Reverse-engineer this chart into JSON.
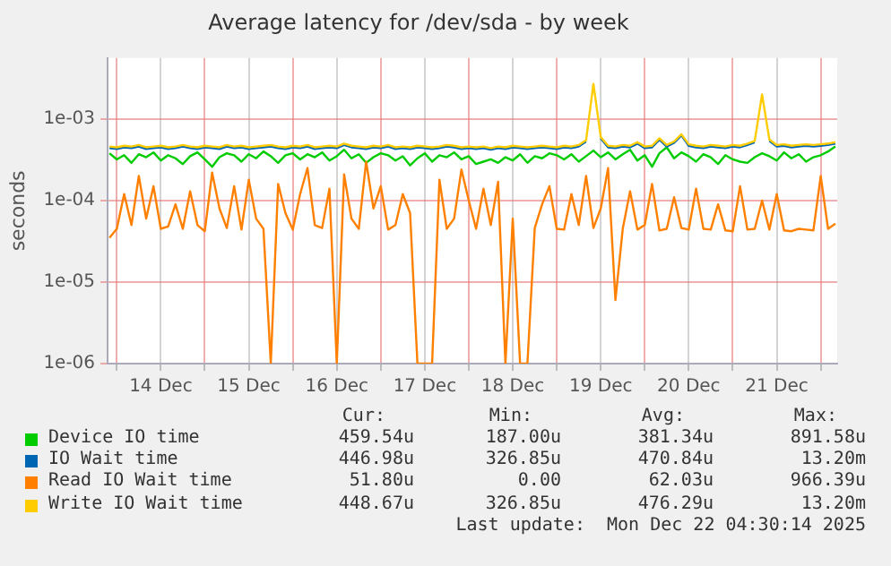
{
  "chart_data": {
    "type": "line",
    "title": "Average latency for /dev/sda - by week",
    "ylabel": "seconds",
    "log": true,
    "grid": true,
    "legend": "bottom",
    "xlim": [
      "2025-12-13T21:30",
      "2025-12-22T04:30"
    ],
    "xticks": [
      {
        "value": "2025-12-14T00:00",
        "label": null
      },
      {
        "value": "2025-12-14T12:00",
        "label": "14 Dec"
      },
      {
        "value": "2025-12-15T00:00",
        "label": null
      },
      {
        "value": "2025-12-15T12:00",
        "label": "15 Dec"
      },
      {
        "value": "2025-12-16T00:00",
        "label": null
      },
      {
        "value": "2025-12-16T12:00",
        "label": "16 Dec"
      },
      {
        "value": "2025-12-17T00:00",
        "label": null
      },
      {
        "value": "2025-12-17T12:00",
        "label": "17 Dec"
      },
      {
        "value": "2025-12-18T00:00",
        "label": null
      },
      {
        "value": "2025-12-18T12:00",
        "label": "18 Dec"
      },
      {
        "value": "2025-12-19T00:00",
        "label": null
      },
      {
        "value": "2025-12-19T12:00",
        "label": "19 Dec"
      },
      {
        "value": "2025-12-20T00:00",
        "label": null
      },
      {
        "value": "2025-12-20T12:00",
        "label": "20 Dec"
      },
      {
        "value": "2025-12-21T00:00",
        "label": null
      },
      {
        "value": "2025-12-21T12:00",
        "label": "21 Dec"
      },
      {
        "value": "2025-12-22T00:00",
        "label": null
      }
    ],
    "ylim": [
      1e-06,
      0.0056
    ],
    "yticks": [
      {
        "value": 1e-06,
        "label": "1e-06"
      },
      {
        "value": 1e-05,
        "label": "1e-05"
      },
      {
        "value": 0.0001,
        "label": "1e-04"
      },
      {
        "value": 0.001,
        "label": "1e-03"
      }
    ],
    "x": [
      "2025-12-13T22:00",
      "2025-12-14T00:00",
      "2025-12-14T02:00",
      "2025-12-14T04:00",
      "2025-12-14T06:00",
      "2025-12-14T08:00",
      "2025-12-14T10:00",
      "2025-12-14T12:00",
      "2025-12-14T14:00",
      "2025-12-14T16:00",
      "2025-12-14T18:00",
      "2025-12-14T20:00",
      "2025-12-14T22:00",
      "2025-12-15T00:00",
      "2025-12-15T02:00",
      "2025-12-15T04:00",
      "2025-12-15T06:00",
      "2025-12-15T08:00",
      "2025-12-15T10:00",
      "2025-12-15T12:00",
      "2025-12-15T14:00",
      "2025-12-15T16:00",
      "2025-12-15T18:00",
      "2025-12-15T20:00",
      "2025-12-15T22:00",
      "2025-12-16T00:00",
      "2025-12-16T02:00",
      "2025-12-16T04:00",
      "2025-12-16T06:00",
      "2025-12-16T08:00",
      "2025-12-16T10:00",
      "2025-12-16T12:00",
      "2025-12-16T14:00",
      "2025-12-16T16:00",
      "2025-12-16T18:00",
      "2025-12-16T20:00",
      "2025-12-16T22:00",
      "2025-12-17T00:00",
      "2025-12-17T02:00",
      "2025-12-17T04:00",
      "2025-12-17T06:00",
      "2025-12-17T08:00",
      "2025-12-17T10:00",
      "2025-12-17T12:00",
      "2025-12-17T14:00",
      "2025-12-17T16:00",
      "2025-12-17T18:00",
      "2025-12-17T20:00",
      "2025-12-17T22:00",
      "2025-12-18T00:00",
      "2025-12-18T02:00",
      "2025-12-18T04:00",
      "2025-12-18T06:00",
      "2025-12-18T08:00",
      "2025-12-18T10:00",
      "2025-12-18T12:00",
      "2025-12-18T14:00",
      "2025-12-18T16:00",
      "2025-12-18T18:00",
      "2025-12-18T20:00",
      "2025-12-18T22:00",
      "2025-12-19T00:00",
      "2025-12-19T02:00",
      "2025-12-19T04:00",
      "2025-12-19T06:00",
      "2025-12-19T08:00",
      "2025-12-19T10:00",
      "2025-12-19T12:00",
      "2025-12-19T14:00",
      "2025-12-19T16:00",
      "2025-12-19T18:00",
      "2025-12-19T20:00",
      "2025-12-19T22:00",
      "2025-12-20T00:00",
      "2025-12-20T02:00",
      "2025-12-20T04:00",
      "2025-12-20T06:00",
      "2025-12-20T08:00",
      "2025-12-20T10:00",
      "2025-12-20T12:00",
      "2025-12-20T14:00",
      "2025-12-20T16:00",
      "2025-12-20T18:00",
      "2025-12-20T20:00",
      "2025-12-20T22:00",
      "2025-12-21T00:00",
      "2025-12-21T02:00",
      "2025-12-21T04:00",
      "2025-12-21T06:00",
      "2025-12-21T08:00",
      "2025-12-21T10:00",
      "2025-12-21T12:00",
      "2025-12-21T14:00",
      "2025-12-21T16:00",
      "2025-12-21T18:00",
      "2025-12-21T20:00",
      "2025-12-21T22:00",
      "2025-12-22T00:00",
      "2025-12-22T02:00",
      "2025-12-22T04:00"
    ],
    "series": [
      {
        "name": "Device IO time",
        "color": "#00cc00",
        "values": [
          0.00038,
          0.00032,
          0.00036,
          0.00029,
          0.00037,
          0.00034,
          0.00039,
          0.00031,
          0.00036,
          0.00033,
          0.00028,
          0.00035,
          0.00039,
          0.00032,
          0.00026,
          0.00034,
          0.00038,
          0.00036,
          0.0003,
          0.00037,
          0.00033,
          0.0004,
          0.00035,
          0.00029,
          0.00036,
          0.00038,
          0.00032,
          0.00037,
          0.00034,
          0.00039,
          0.00031,
          0.00035,
          0.00042,
          0.00033,
          0.00037,
          0.00029,
          0.00034,
          0.00038,
          0.00036,
          0.00031,
          0.00035,
          0.00027,
          0.00033,
          0.00038,
          0.0003,
          0.00036,
          0.00034,
          0.00039,
          0.00032,
          0.00035,
          0.00028,
          0.0003,
          0.00032,
          0.00029,
          0.00034,
          0.00031,
          0.00037,
          0.00029,
          0.00035,
          0.00033,
          0.00038,
          0.00036,
          0.00032,
          0.00037,
          0.0003,
          0.00035,
          0.00041,
          0.00034,
          0.00039,
          0.00032,
          0.00037,
          0.00042,
          0.00031,
          0.00036,
          0.00026,
          0.00038,
          0.00045,
          0.00033,
          0.00039,
          0.00035,
          0.0003,
          0.00037,
          0.00034,
          0.00028,
          0.00036,
          0.00032,
          0.0003,
          0.00029,
          0.00034,
          0.00038,
          0.00035,
          0.00031,
          0.00039,
          0.00033,
          0.00037,
          0.0003,
          0.00034,
          0.00036,
          0.0004,
          0.00046
        ]
      },
      {
        "name": "IO Wait time",
        "color": "#0066b3",
        "values": [
          0.00044,
          0.00043,
          0.00045,
          0.00044,
          0.00046,
          0.00043,
          0.00044,
          0.00045,
          0.00043,
          0.00044,
          0.00046,
          0.00044,
          0.00043,
          0.00045,
          0.00044,
          0.00043,
          0.00046,
          0.00044,
          0.00045,
          0.00043,
          0.00044,
          0.00045,
          0.00046,
          0.00044,
          0.00043,
          0.00045,
          0.00044,
          0.00046,
          0.00043,
          0.00044,
          0.00045,
          0.00044,
          0.00048,
          0.00045,
          0.00044,
          0.00043,
          0.00045,
          0.00044,
          0.00046,
          0.00043,
          0.00044,
          0.00043,
          0.00045,
          0.00044,
          0.00043,
          0.00044,
          0.00046,
          0.00045,
          0.00043,
          0.00044,
          0.00043,
          0.00044,
          0.00042,
          0.00044,
          0.00043,
          0.00045,
          0.00044,
          0.00043,
          0.00044,
          0.00045,
          0.00044,
          0.00043,
          0.00045,
          0.00044,
          0.00046,
          0.00053,
          null,
          0.00058,
          0.00045,
          0.00044,
          0.00046,
          0.00045,
          0.0005,
          0.00044,
          0.00045,
          0.00056,
          0.00046,
          0.00051,
          0.00063,
          0.00047,
          0.00045,
          0.00044,
          0.00046,
          0.00045,
          0.00044,
          0.00046,
          0.00045,
          0.00048,
          0.00052,
          null,
          0.00054,
          0.00046,
          0.00047,
          0.00045,
          0.00046,
          0.00047,
          0.00046,
          0.00047,
          0.00048,
          0.0005
        ]
      },
      {
        "name": "Read IO Wait time",
        "color": "#ff8000",
        "values": [
          3.5e-05,
          4.5e-05,
          0.00012,
          5e-05,
          0.0002,
          6e-05,
          0.00015,
          4.5e-05,
          4.8e-05,
          9e-05,
          4.5e-05,
          0.00013,
          5e-05,
          4.2e-05,
          0.00022,
          8e-05,
          4.6e-05,
          0.00015,
          4.4e-05,
          0.00018,
          6e-05,
          4.5e-05,
          1e-06,
          0.00016,
          7e-05,
          4.4e-05,
          0.00012,
          0.00025,
          5e-05,
          4.6e-05,
          0.00014,
          1e-06,
          0.00021,
          6e-05,
          4.5e-05,
          0.0003,
          8e-05,
          0.00015,
          4.4e-05,
          5e-05,
          0.00012,
          7e-05,
          1e-06,
          1e-06,
          1e-06,
          0.00018,
          4.5e-05,
          6e-05,
          0.00024,
          0.0001,
          4.5e-05,
          0.00014,
          5e-05,
          0.00017,
          1e-06,
          6e-05,
          1e-06,
          1e-06,
          4.6e-05,
          9e-05,
          0.00015,
          4.5e-05,
          4.4e-05,
          0.00012,
          5e-05,
          0.0002,
          4.6e-05,
          8e-05,
          0.00025,
          6e-06,
          4.5e-05,
          0.00013,
          4.4e-05,
          5e-05,
          0.00016,
          4.3e-05,
          4.5e-05,
          0.00011,
          4.6e-05,
          4.4e-05,
          0.00014,
          4.5e-05,
          4.4e-05,
          9e-05,
          4.3e-05,
          4.2e-05,
          0.00015,
          4.4e-05,
          4.5e-05,
          0.0001,
          4.4e-05,
          0.00012,
          4.3e-05,
          4.2e-05,
          4.5e-05,
          4.4e-05,
          4.3e-05,
          0.0002,
          4.5e-05,
          5.2e-05
        ]
      },
      {
        "name": "Write IO Wait time",
        "color": "#ffcc00",
        "values": [
          0.00046,
          0.00045,
          0.00047,
          0.00046,
          0.00048,
          0.00045,
          0.00046,
          0.00047,
          0.00045,
          0.00046,
          0.00048,
          0.00046,
          0.00045,
          0.00047,
          0.00046,
          0.00045,
          0.00048,
          0.00046,
          0.00047,
          0.00045,
          0.00046,
          0.00047,
          0.00048,
          0.00046,
          0.00045,
          0.00047,
          0.00046,
          0.00048,
          0.00045,
          0.00046,
          0.00047,
          0.00046,
          0.0005,
          0.00047,
          0.00046,
          0.00045,
          0.00047,
          0.00046,
          0.00048,
          0.00045,
          0.00046,
          0.00045,
          0.00047,
          0.00046,
          0.00045,
          0.00046,
          0.00048,
          0.00047,
          0.00045,
          0.00046,
          0.00045,
          0.00046,
          0.00044,
          0.00046,
          0.00045,
          0.00047,
          0.00046,
          0.00045,
          0.00046,
          0.00047,
          0.00046,
          0.00045,
          0.00047,
          0.00046,
          0.00048,
          0.00055,
          0.0027,
          0.0006,
          0.00047,
          0.00046,
          0.00048,
          0.00047,
          0.00052,
          0.00046,
          0.00047,
          0.00058,
          0.00048,
          0.00053,
          0.00065,
          0.00049,
          0.00047,
          0.00046,
          0.00048,
          0.00047,
          0.00046,
          0.00048,
          0.00047,
          0.0005,
          0.00054,
          0.002,
          0.00056,
          0.00048,
          0.00049,
          0.00047,
          0.00048,
          0.00049,
          0.00048,
          0.00049,
          0.0005,
          0.00052
        ]
      }
    ],
    "annotations": [
      "Cur:",
      "Min:",
      "Avg:",
      "Max:",
      "459.54u",
      "187.00u",
      "381.34u",
      "891.58u",
      "446.98u",
      "326.85u",
      "470.84u",
      "13.20m",
      "51.80u",
      "0.00",
      "62.03u",
      "966.39u",
      "448.67u",
      "326.85u",
      "476.29u",
      "13.20m",
      "Last update:  Mon Dec 22 04:30:14 2025"
    ]
  }
}
